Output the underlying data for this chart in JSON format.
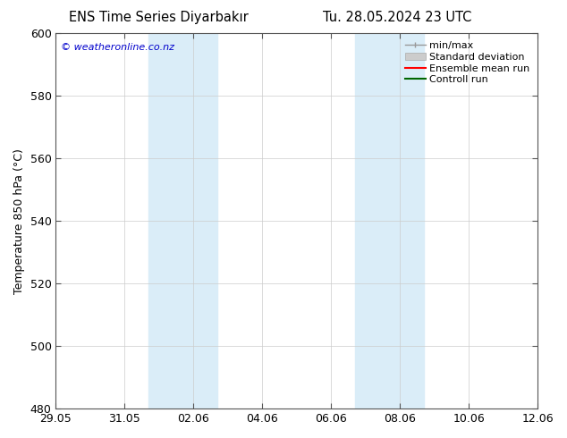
{
  "title": "ENS Time Series Diyarbakır",
  "title_right": "Tu. 28.05.2024 23 UTC",
  "ylabel": "Temperature 850 hPa (°C)",
  "watermark": "© weatheronline.co.nz",
  "watermark_color": "#0000cc",
  "ylim": [
    480,
    600
  ],
  "yticks": [
    480,
    500,
    520,
    540,
    560,
    580,
    600
  ],
  "xtick_labels": [
    "29.05",
    "31.05",
    "02.06",
    "04.06",
    "06.06",
    "08.06",
    "10.06",
    "12.06"
  ],
  "xtick_positions": [
    0,
    2,
    4,
    6,
    8,
    10,
    12,
    14
  ],
  "x_min": 0,
  "x_max": 14,
  "shaded_bands": [
    {
      "x_start": 2.7,
      "x_end": 4.7,
      "color": "#daedf8"
    },
    {
      "x_start": 8.7,
      "x_end": 10.7,
      "color": "#daedf8"
    }
  ],
  "background_color": "#ffffff",
  "plot_bg_color": "#ffffff",
  "grid_color": "#cccccc",
  "font_size": 9,
  "title_font_size": 10.5,
  "legend_font_size": 8
}
